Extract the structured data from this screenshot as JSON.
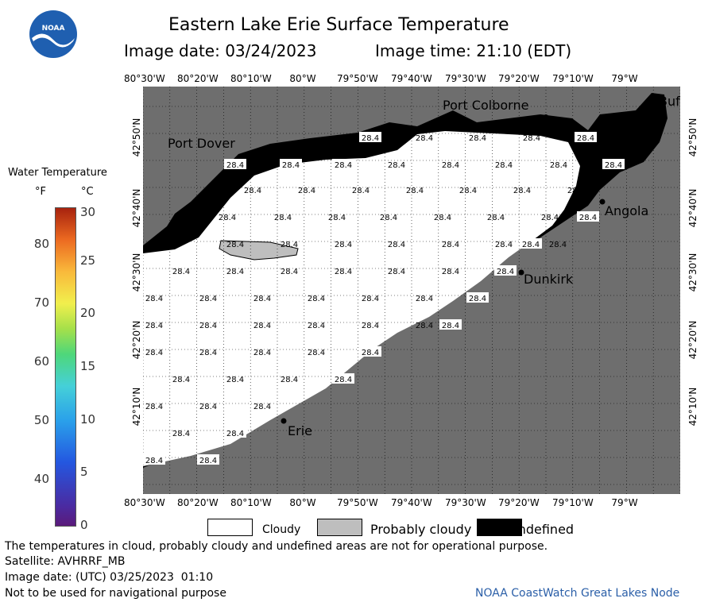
{
  "header": {
    "title": "Eastern Lake Erie Surface Temperature",
    "image_date": "Image date: 03/24/2023",
    "image_time": "Image time: 21:10 (EDT)"
  },
  "logo": {
    "text": "NOAA"
  },
  "colorbar": {
    "title": "Water Temperature",
    "unit_f": "°F",
    "unit_c": "°C",
    "ticks_f": [
      "80",
      "70",
      "60",
      "50",
      "40"
    ],
    "ticks_c": [
      "30",
      "25",
      "20",
      "15",
      "10",
      "5",
      "0"
    ]
  },
  "map": {
    "lon_labels": [
      "80°30'W",
      "80°20'W",
      "80°10'W",
      "80°W",
      "79°50'W",
      "79°40'W",
      "79°30'W",
      "79°20'W",
      "79°10'W",
      "79°W"
    ],
    "lat_labels": [
      "42°50'N",
      "42°40'N",
      "42°30'N",
      "42°20'N",
      "42°10'N"
    ],
    "cities": [
      "Port Colborne",
      "Port Dover",
      "Angola",
      "Dunkirk",
      "Erie",
      "Buf"
    ],
    "temperature_value": "28.4"
  },
  "legend": {
    "cloudy": "Cloudy",
    "probably_cloudy": "Probably cloudy",
    "undefined": "Undefined",
    "colors": {
      "cloudy": "#ffffff",
      "probably_cloudy": "#bebebe",
      "undefined": "#000000",
      "land": "#6e6e6e"
    }
  },
  "footer": {
    "disclaimer": "The temperatures in cloud, probably cloudy and undefined areas are not for operational purpose.",
    "satellite": "Satellite: AVHRRF_MB",
    "utc_date": "Image date: (UTC) 03/25/2023  01:10",
    "nav_warning": "Not to be used for navigational purpose",
    "credit": "NOAA CoastWatch Great Lakes Node"
  }
}
